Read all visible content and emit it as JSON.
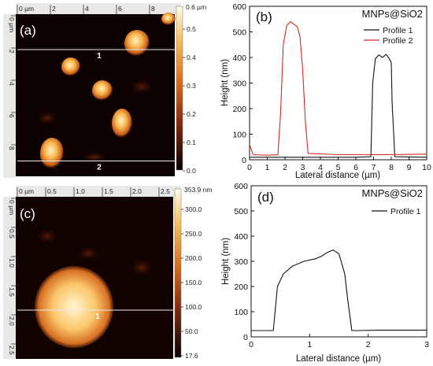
{
  "chart_data": [
    {
      "panel": "(a)",
      "type": "heatmap",
      "axis_unit_label": "µm",
      "x_ticks": [
        "0 µm",
        "2",
        "4",
        "6",
        "8"
      ],
      "y_ticks": [
        "0 µm",
        "2",
        "4",
        "6",
        "8"
      ],
      "colorbar": {
        "unit_label": "0.6 µm",
        "ticks": [
          "0.5",
          "0.4",
          "0.3",
          "0.2",
          "0.1",
          "0.0"
        ],
        "range": [
          0.0,
          0.6
        ]
      },
      "profile_lines": [
        {
          "label": "1",
          "y_um": 2.1
        },
        {
          "label": "2",
          "y_um": 9.0
        }
      ]
    },
    {
      "panel": "(b)",
      "type": "line",
      "legend_title": "MNPs@SiO2",
      "xlabel": "Lateral distance (µm)",
      "ylabel": "Height (nm)",
      "xlim": [
        0,
        10
      ],
      "ylim": [
        0,
        600
      ],
      "x_ticks": [
        "0",
        "1",
        "2",
        "3",
        "4",
        "5",
        "6",
        "7",
        "8",
        "9",
        "10"
      ],
      "y_ticks": [
        "0",
        "100",
        "200",
        "300",
        "400",
        "500",
        "600"
      ],
      "colors": {
        "Profile 1": "#111111",
        "Profile 2": "#d62a1f"
      },
      "series": [
        {
          "name": "Profile 1",
          "x": [
            0,
            2,
            4,
            6,
            6.85,
            6.95,
            7.1,
            7.3,
            7.5,
            7.7,
            7.85,
            8.0,
            8.05,
            8.2,
            10
          ],
          "y": [
            10,
            10,
            10,
            10,
            12,
            300,
            395,
            410,
            400,
            412,
            400,
            380,
            220,
            12,
            10
          ]
        },
        {
          "name": "Profile 2",
          "x": [
            0,
            0.2,
            1.0,
            1.6,
            1.75,
            1.9,
            2.1,
            2.3,
            2.5,
            2.7,
            2.85,
            3.0,
            3.15,
            3.3,
            5,
            8,
            10
          ],
          "y": [
            60,
            20,
            18,
            20,
            180,
            450,
            525,
            540,
            530,
            520,
            480,
            350,
            150,
            25,
            20,
            20,
            22
          ]
        }
      ]
    },
    {
      "panel": "(c)",
      "type": "heatmap",
      "axis_unit_label": "µm",
      "x_ticks": [
        "0 µm",
        "0.5",
        "1.0",
        "1.5",
        "2.0",
        "2.5"
      ],
      "y_ticks": [
        "0 µm",
        "0.5",
        "1.0",
        "1.5",
        "2.0",
        "2.5"
      ],
      "colorbar": {
        "unit_label": "353.9 nm",
        "ticks": [
          "300.0",
          "250.0",
          "200.0",
          "150.0",
          "100.0",
          "50.0",
          "17.6"
        ],
        "range": [
          17.6,
          353.9
        ]
      },
      "profile_lines": [
        {
          "label": "1",
          "y_um": 2.0
        }
      ]
    },
    {
      "panel": "(d)",
      "type": "line",
      "legend_title": "MNPs@SiO2",
      "xlabel": "Lateral distance (µm)",
      "ylabel": "Height (nm)",
      "xlim": [
        0,
        3
      ],
      "ylim": [
        0,
        600
      ],
      "x_ticks": [
        "0",
        "1",
        "2",
        "3"
      ],
      "y_ticks": [
        "0",
        "100",
        "200",
        "300",
        "400",
        "500",
        "600"
      ],
      "colors": {
        "Profile 1": "#111111"
      },
      "series": [
        {
          "name": "Profile 1",
          "x": [
            0,
            0.2,
            0.38,
            0.45,
            0.55,
            0.7,
            0.9,
            1.1,
            1.2,
            1.3,
            1.4,
            1.5,
            1.6,
            1.65,
            1.72,
            1.8,
            2.2,
            3.0
          ],
          "y": [
            25,
            25,
            25,
            200,
            250,
            280,
            300,
            310,
            320,
            335,
            345,
            330,
            250,
            150,
            25,
            25,
            27,
            27
          ]
        }
      ]
    }
  ]
}
